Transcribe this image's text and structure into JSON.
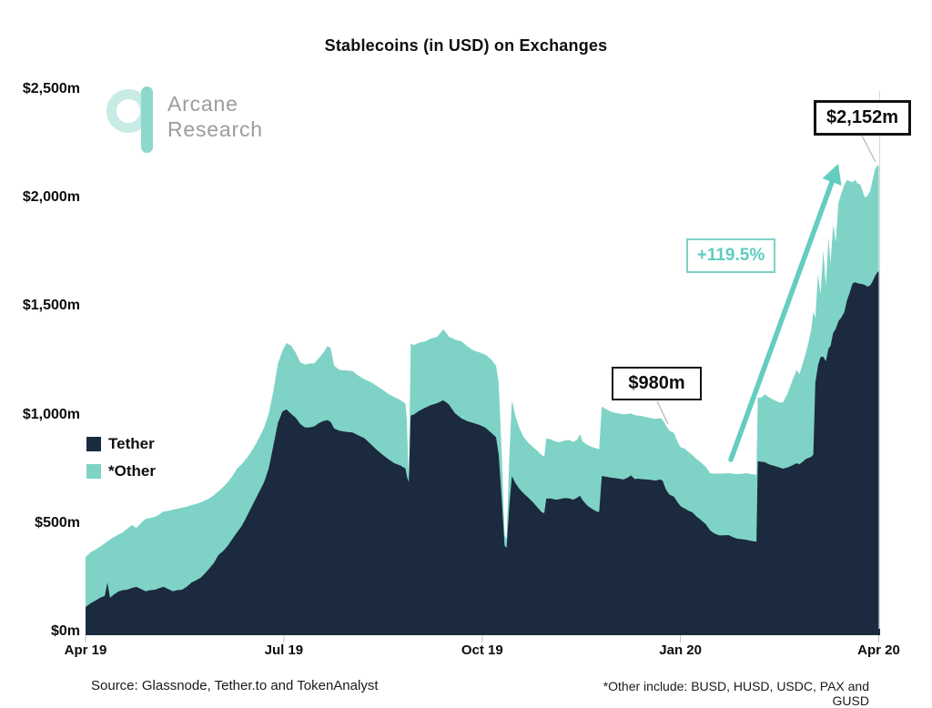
{
  "title": "Stablecoins (in USD) on Exchanges",
  "logo": {
    "line1": "Arcane",
    "line2": "Research"
  },
  "annotations": {
    "end_value": "$2,152m",
    "mid_value": "$980m",
    "pct_change": "+119.5%"
  },
  "footer": {
    "source": "Source: Glassnode, Tether.to and TokenAnalyst",
    "note": "*Other include: BUSD, HUSD, USDC, PAX and GUSD"
  },
  "colors": {
    "tether": "#1b2a3e",
    "other": "#7ed3c6",
    "arrow": "#63cdc0",
    "axis": "#1b2a3e",
    "callout_border": "#121212",
    "pct_teal": "#5eccbf",
    "connector": "#b5b5b5",
    "plot_border": "#d6d6d6"
  },
  "chart_data": {
    "type": "area",
    "stacked": true,
    "title": "Stablecoins (in USD) on Exchanges",
    "xlabel": "",
    "ylabel": "",
    "ylim": [
      0,
      2500
    ],
    "grid": false,
    "legend_position": "center-left",
    "x_unit": "months since Apr 2019",
    "x_tick_positions": [
      0,
      3,
      6,
      9,
      12
    ],
    "x_ticks": [
      "Apr 19",
      "Jul 19",
      "Oct 19",
      "Jan 20",
      "Apr 20"
    ],
    "y_tick_values": [
      0,
      500,
      1000,
      1500,
      2000,
      2500
    ],
    "y_ticks": [
      "$0m",
      "$500m",
      "$1,000m",
      "$1,500m",
      "$2,000m",
      "$2,500m"
    ],
    "annotated_points": [
      {
        "label": "$980m",
        "t": 8.73,
        "total": 980
      },
      {
        "label": "$2,152m",
        "t": 12.0,
        "total": 2152
      }
    ],
    "x": [
      0.0,
      0.08,
      0.15,
      0.22,
      0.29,
      0.33,
      0.37,
      0.43,
      0.5,
      0.56,
      0.63,
      0.7,
      0.77,
      0.84,
      0.91,
      0.98,
      1.05,
      1.12,
      1.18,
      1.25,
      1.32,
      1.39,
      1.46,
      1.53,
      1.6,
      1.67,
      1.74,
      1.8,
      1.87,
      1.94,
      2.01,
      2.08,
      2.15,
      2.22,
      2.29,
      2.36,
      2.42,
      2.49,
      2.56,
      2.63,
      2.7,
      2.77,
      2.84,
      2.91,
      2.98,
      3.04,
      3.11,
      3.18,
      3.25,
      3.32,
      3.39,
      3.46,
      3.53,
      3.6,
      3.66,
      3.71,
      3.76,
      3.84,
      3.94,
      4.04,
      4.12,
      4.22,
      4.31,
      4.39,
      4.49,
      4.59,
      4.67,
      4.77,
      4.84,
      4.86,
      4.89,
      4.92,
      4.97,
      5.04,
      5.14,
      5.22,
      5.32,
      5.41,
      5.46,
      5.5,
      5.59,
      5.69,
      5.77,
      5.87,
      5.97,
      6.05,
      6.14,
      6.21,
      6.25,
      6.3,
      6.34,
      6.37,
      6.41,
      6.45,
      6.5,
      6.56,
      6.63,
      6.7,
      6.77,
      6.83,
      6.9,
      6.94,
      6.97,
      7.04,
      7.11,
      7.18,
      7.25,
      7.32,
      7.38,
      7.44,
      7.48,
      7.52,
      7.59,
      7.66,
      7.73,
      7.77,
      7.81,
      7.87,
      7.94,
      8.0,
      8.07,
      8.14,
      8.21,
      8.25,
      8.31,
      8.35,
      8.42,
      8.49,
      8.56,
      8.62,
      8.69,
      8.73,
      8.78,
      8.83,
      8.9,
      8.97,
      9.01,
      9.06,
      9.13,
      9.18,
      9.24,
      9.29,
      9.34,
      9.38,
      9.45,
      9.52,
      9.59,
      9.66,
      9.73,
      9.79,
      9.86,
      9.93,
      10.0,
      10.07,
      10.11,
      10.15,
      10.17,
      10.22,
      10.28,
      10.33,
      10.39,
      10.44,
      10.5,
      10.55,
      10.62,
      10.69,
      10.76,
      10.8,
      10.86,
      10.9,
      10.94,
      10.98,
      11.01,
      11.04,
      11.08,
      11.12,
      11.16,
      11.2,
      11.24,
      11.27,
      11.31,
      11.35,
      11.39,
      11.43,
      11.48,
      11.52,
      11.56,
      11.6,
      11.64,
      11.68,
      11.72,
      11.76,
      11.79,
      11.83,
      11.87,
      11.91,
      11.94,
      11.97,
      12.0
    ],
    "series": [
      {
        "name": "Tether",
        "color": "#1b2a3e",
        "values": [
          117,
          135,
          147,
          160,
          168,
          230,
          160,
          175,
          189,
          195,
          197,
          205,
          210,
          200,
          190,
          195,
          197,
          205,
          210,
          200,
          190,
          195,
          197,
          210,
          230,
          240,
          252,
          270,
          294,
          320,
          357,
          375,
          399,
          430,
          461,
          490,
          524,
          565,
          608,
          650,
          692,
          755,
          860,
          965,
          1019,
          1028,
          1007,
          990,
          960,
          945,
          945,
          950,
          965,
          975,
          979,
          970,
          940,
          930,
          925,
          922,
          910,
          895,
          870,
          846,
          820,
          797,
          780,
          769,
          755,
          720,
          692,
          1000,
          1005,
          1020,
          1036,
          1048,
          1057,
          1070,
          1060,
          1050,
          1010,
          986,
          975,
          965,
          955,
          944,
          920,
          900,
          820,
          600,
          400,
          390,
          580,
          721,
          690,
          663,
          640,
          621,
          600,
          579,
          554,
          550,
          617,
          618,
          612,
          615,
          620,
          618,
          612,
          622,
          630,
          610,
          585,
          570,
          558,
          555,
          721,
          718,
          714,
          712,
          709,
          705,
          715,
          724,
          707,
          709,
          707,
          705,
          703,
          700,
          705,
          700,
          660,
          636,
          626,
          595,
          580,
          572,
          560,
          554,
          535,
          524,
          510,
          500,
          470,
          455,
          447,
          448,
          449,
          440,
          432,
          430,
          427,
          422,
          420,
          418,
          789,
          787,
          785,
          776,
          770,
          766,
          760,
          755,
          760,
          770,
          780,
          775,
          790,
          800,
          805,
          810,
          820,
          1150,
          1230,
          1270,
          1271,
          1250,
          1309,
          1320,
          1380,
          1400,
          1435,
          1450,
          1477,
          1531,
          1565,
          1607,
          1615,
          1610,
          1607,
          1605,
          1602,
          1594,
          1600,
          1620,
          1640,
          1657,
          1665
        ]
      },
      {
        "name": "*Other",
        "color": "#7ed3c6",
        "values": [
          231,
          235,
          235,
          235,
          243,
          190,
          268,
          265,
          263,
          266,
          281,
          290,
          272,
          305,
          334,
          333,
          336,
          340,
          348,
          360,
          376,
          375,
          378,
          370,
          357,
          352,
          348,
          338,
          323,
          312,
          293,
          295,
          293,
          290,
          294,
          285,
          273,
          260,
          252,
          250,
          252,
          252,
          252,
          273,
          281,
          306,
          315,
          300,
          285,
          290,
          295,
          290,
          300,
          315,
          341,
          340,
          290,
          280,
          283,
          283,
          275,
          272,
          285,
          294,
          300,
          301,
          305,
          301,
          300,
          260,
          13,
          330,
          320,
          315,
          306,
          307,
          306,
          327,
          320,
          313,
          340,
          356,
          345,
          335,
          335,
          336,
          338,
          330,
          330,
          200,
          50,
          40,
          220,
          349,
          310,
          281,
          260,
          252,
          255,
          260,
          264,
          260,
          277,
          272,
          268,
          263,
          265,
          269,
          266,
          268,
          285,
          270,
          280,
          285,
          290,
          290,
          320,
          312,
          304,
          301,
          301,
          300,
          293,
          286,
          295,
          291,
          291,
          287,
          285,
          285,
          283,
          280,
          295,
          294,
          294,
          275,
          272,
          276,
          270,
          264,
          265,
          266,
          265,
          265,
          264,
          277,
          285,
          285,
          286,
          292,
          298,
          302,
          307,
          308,
          308,
          308,
          294,
          295,
          313,
          309,
          305,
          302,
          300,
          305,
          340,
          390,
          430,
          415,
          460,
          492,
          535,
          590,
          660,
          300,
          420,
          290,
          489,
          350,
          511,
          380,
          500,
          400,
          545,
          570,
          587,
          554,
          515,
          468,
          470,
          460,
          457,
          425,
          403,
          420,
          435,
          470,
          490,
          495,
          487
        ]
      }
    ]
  }
}
